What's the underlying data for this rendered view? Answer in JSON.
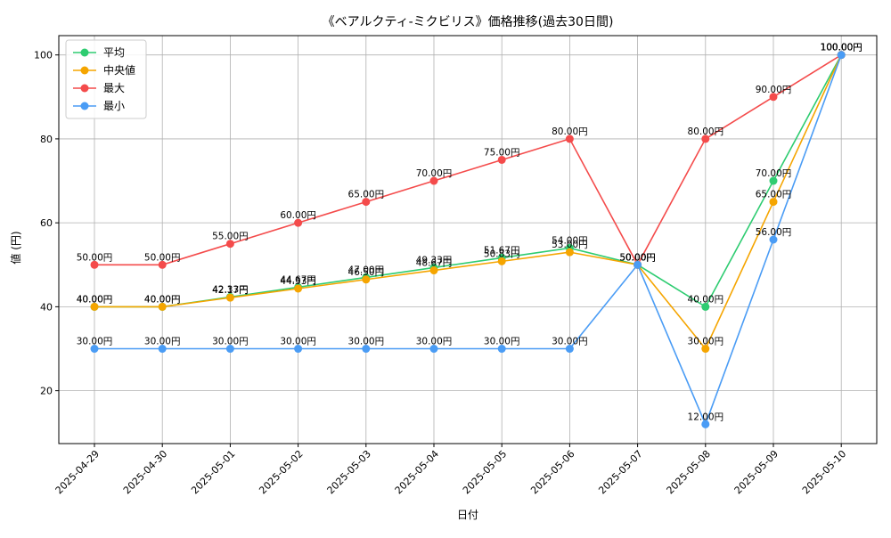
{
  "chart_data": {
    "type": "line",
    "title": "《ベアルクティ-ミクビリス》価格推移(過去30日間)",
    "xlabel": "日付",
    "ylabel": "値 (円)",
    "categories": [
      "2025-04-29",
      "2025-04-30",
      "2025-05-01",
      "2025-05-02",
      "2025-05-03",
      "2025-05-04",
      "2025-05-05",
      "2025-05-06",
      "2025-05-07",
      "2025-05-08",
      "2025-05-09",
      "2025-05-10"
    ],
    "ylim": [
      7.4,
      104.6
    ],
    "yticks": [
      20,
      40,
      60,
      80,
      100
    ],
    "grid": true,
    "legend_position": "top-left",
    "value_suffix": "円",
    "series": [
      {
        "name": "平均",
        "color": "#2ecc71",
        "values": [
          40,
          40,
          42.33,
          44.67,
          47.0,
          49.33,
          51.67,
          54.0,
          50,
          40,
          70,
          100
        ],
        "labels": [
          "40.00円",
          "40.00円",
          "42.33円",
          "44.67円",
          "47.00円",
          "49.33円",
          "51.67円",
          "54.00円",
          "50.00円",
          "40.00円",
          "70.00円",
          "100.00円"
        ]
      },
      {
        "name": "中央値",
        "color": "#f5a500",
        "values": [
          40,
          40,
          42.17,
          44.33,
          46.5,
          48.67,
          50.83,
          53.0,
          50,
          30,
          65,
          100
        ],
        "labels": [
          "40.00円",
          "40.00円",
          "42.17円",
          "44.33円",
          "46.50円",
          "48.67円",
          "50.83円",
          "53.00円",
          "50.00円",
          "30.00円",
          "65.00円",
          "100.00円"
        ]
      },
      {
        "name": "最大",
        "color": "#f44b4b",
        "values": [
          50,
          50,
          55,
          60,
          65,
          70,
          75,
          80,
          50,
          80,
          90,
          100
        ],
        "labels": [
          "50.00円",
          "50.00円",
          "55.00円",
          "60.00円",
          "65.00円",
          "70.00円",
          "75.00円",
          "80.00円",
          "50.00円",
          "80.00円",
          "90.00円",
          "100.00円"
        ]
      },
      {
        "name": "最小",
        "color": "#4a9cf5",
        "values": [
          30,
          30,
          30,
          30,
          30,
          30,
          30,
          30,
          50,
          12,
          56,
          100
        ],
        "labels": [
          "30.00円",
          "30.00円",
          "30.00円",
          "30.00円",
          "30.00円",
          "30.00円",
          "30.00円",
          "30.00円",
          "50.00円",
          "12.00円",
          "56.00円",
          "100.00円"
        ]
      }
    ]
  }
}
